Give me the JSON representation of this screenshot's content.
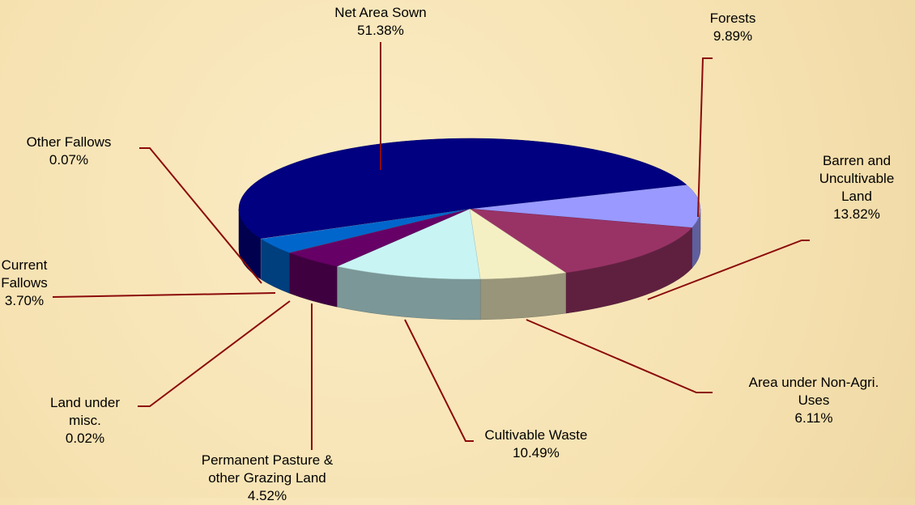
{
  "chart_data": {
    "type": "pie",
    "three_d": true,
    "categories": [
      "Forests",
      "Barren and Uncultivable Land",
      "Area under Non-Agri. Uses",
      "Cultivable Waste",
      "Permanent Pasture & other Grazing Land",
      "Land under misc.",
      "Current Fallows",
      "Other Fallows",
      "Net Area Sown"
    ],
    "values": [
      9.89,
      13.82,
      6.11,
      10.49,
      4.52,
      0.02,
      3.7,
      0.07,
      51.38
    ],
    "value_labels": [
      "9.89%",
      "13.82%",
      "6.11%",
      "10.49%",
      "4.52%",
      "0.02%",
      "3.70%",
      "0.07%",
      "51.38%"
    ],
    "colors": [
      "#9999ff",
      "#993366",
      "#f5f0c4",
      "#c8f4f4",
      "#660066",
      "#ff8080",
      "#0066cc",
      "#ccccff",
      "#000080"
    ]
  }
}
